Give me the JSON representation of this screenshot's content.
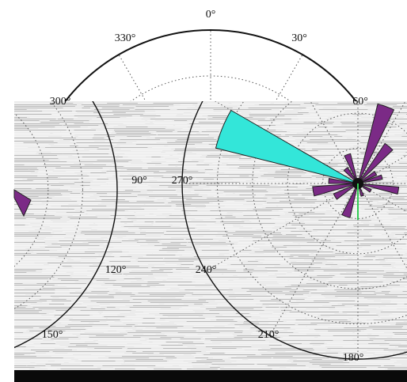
{
  "chart_data": [
    {
      "type": "rose",
      "angle_convention": "compass-clockwise-from-top",
      "angular_ticks": [
        "0°",
        "30°",
        "60°",
        "300°",
        "330°"
      ],
      "radial_grid_levels": 3,
      "sectors": [],
      "visible": "upper half of polar frame (partially occluded)"
    },
    {
      "type": "rose",
      "angle_convention": "compass-clockwise-from-top",
      "angular_ticks": [
        "90°",
        "120°",
        "150°",
        "180°",
        "210°",
        "240°",
        "270°"
      ],
      "radial_grid_levels": 4,
      "highlight_color": "#33e6d9",
      "base_color": "#7b2a86",
      "sectors": [
        {
          "angle_deg": 292,
          "width_deg": 16,
          "value": 1.0,
          "color": "#33e6d9"
        },
        {
          "angle_deg": 20,
          "width_deg": 12,
          "value": 0.56,
          "color": "#7b2a86"
        },
        {
          "angle_deg": 40,
          "width_deg": 12,
          "value": 0.33,
          "color": "#7b2a86"
        },
        {
          "angle_deg": 60,
          "width_deg": 12,
          "value": 0.14,
          "color": "#7b2a86"
        },
        {
          "angle_deg": 75,
          "width_deg": 10,
          "value": 0.17,
          "color": "#7b2a86"
        },
        {
          "angle_deg": 100,
          "width_deg": 10,
          "value": 0.28,
          "color": "#7b2a86"
        },
        {
          "angle_deg": 120,
          "width_deg": 12,
          "value": 0.1,
          "color": "#7b2a86"
        },
        {
          "angle_deg": 160,
          "width_deg": 12,
          "value": 0.09,
          "color": "#7b2a86"
        },
        {
          "angle_deg": 200,
          "width_deg": 14,
          "value": 0.24,
          "color": "#7b2a86"
        },
        {
          "angle_deg": 240,
          "width_deg": 14,
          "value": 0.18,
          "color": "#7b2a86"
        },
        {
          "angle_deg": 260,
          "width_deg": 12,
          "value": 0.31,
          "color": "#7b2a86"
        },
        {
          "angle_deg": 275,
          "width_deg": 10,
          "value": 0.2,
          "color": "#7b2a86"
        },
        {
          "angle_deg": 320,
          "width_deg": 14,
          "value": 0.13,
          "color": "#7b2a86"
        },
        {
          "angle_deg": 340,
          "width_deg": 12,
          "value": 0.21,
          "color": "#7b2a86"
        }
      ],
      "reference_bearing_deg": 180,
      "reference_color": "#33cc55"
    },
    {
      "type": "rose",
      "angle_convention": "compass-clockwise-from-top",
      "angular_ticks": [],
      "sectors": [
        {
          "angle_deg": 120,
          "width_deg": 14,
          "value": 0.3,
          "color": "#7b2a86"
        }
      ],
      "visible": "right edge only (clipped at left border)"
    }
  ]
}
